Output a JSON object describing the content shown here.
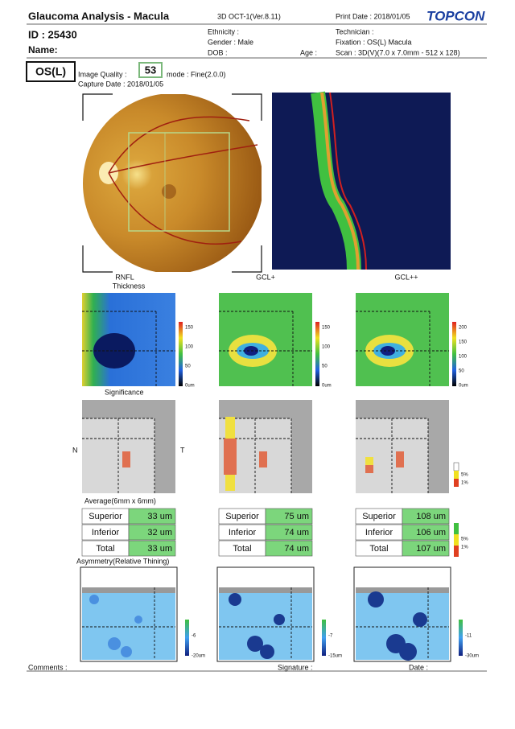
{
  "header": {
    "title": "Glaucoma Analysis - Macula",
    "version": "3D OCT-1(Ver.8.11)",
    "print_date": "Print Date : 2018/01/05",
    "logo": "TOPCON",
    "id": "ID : 25430",
    "name": "Name:",
    "ethnicity": "Ethnicity :",
    "gender": "Gender : Male",
    "dob": "DOB :",
    "age": "Age :",
    "technician": "Technician :",
    "fixation": "Fixation : OS(L) Macula",
    "scan": "Scan : 3D(V)(7.0 x 7.0mm - 512 x 128)"
  },
  "exam": {
    "eye": "OS(L)",
    "quality_label": "Image Quality :",
    "quality": 53,
    "mode": "mode : Fine(2.0.0)",
    "capture_date": "Capture Date : 2018/01/05"
  },
  "columns": [
    [
      "RNFL",
      "Thickness"
    ],
    [
      "GCL+"
    ],
    [
      "GCL++"
    ]
  ],
  "thickness_scales": [
    [
      "150",
      "100",
      "50",
      "0um"
    ],
    [
      "150",
      "100",
      "50",
      "0um"
    ],
    [
      "200",
      "150",
      "100",
      "50",
      "0um"
    ]
  ],
  "significance": {
    "title": "Significance",
    "nasal": "N",
    "temporal": "T",
    "legend": [
      "5%",
      "1%"
    ]
  },
  "average": {
    "title": "Average(6mm x 6mm)",
    "tables": [
      [
        [
          "Superior",
          "33 um"
        ],
        [
          "Inferior",
          "32 um"
        ],
        [
          "Total",
          "33 um"
        ]
      ],
      [
        [
          "Superior",
          "75 um"
        ],
        [
          "Inferior",
          "74 um"
        ],
        [
          "Total",
          "74 um"
        ]
      ],
      [
        [
          "Superior",
          "108 um"
        ],
        [
          "Inferior",
          "106 um"
        ],
        [
          "Total",
          "107 um"
        ]
      ]
    ],
    "legend": [
      "5%",
      "1%"
    ]
  },
  "asymmetry": {
    "title": "Asymmetry(Relative Thining)",
    "scales": [
      [
        "-6",
        "-20um"
      ],
      [
        "-7",
        "-15um"
      ],
      [
        "-11",
        "-30um"
      ]
    ]
  },
  "footer": {
    "comments": "Comments :",
    "signature": "Signature :",
    "date": "Date :"
  }
}
